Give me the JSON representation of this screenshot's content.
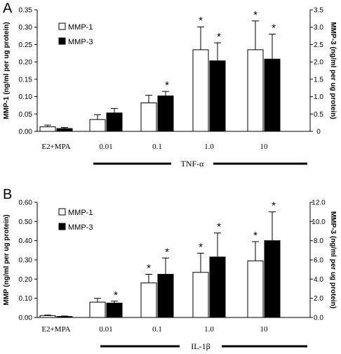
{
  "chart_data": [
    {
      "type": "bar",
      "panel_label": "A",
      "categories": [
        "E2+MPA",
        "0.01",
        "0.1",
        "1.0",
        "10"
      ],
      "treatment_label": "TNF-α",
      "treatment_group": [
        "0.01",
        "0.1",
        "1.0",
        "10"
      ],
      "ylabel_left": "MMP-1 (ng/ml per ug protein)",
      "ylabel_right": "MMP-3 (ng/ml per ug protein)",
      "ylim_left": [
        0,
        0.35
      ],
      "ylim_right": [
        0,
        3.5
      ],
      "yticks_left": [
        "0.00",
        "0.05",
        "0.10",
        "0.15",
        "0.20",
        "0.25",
        "0.30",
        "0.35"
      ],
      "yticks_right": [
        "0",
        "0.5",
        "1.0",
        "1.5",
        "2.0",
        "2.5",
        "3.0",
        "3.5"
      ],
      "legend": [
        "MMP-1",
        "MMP-3"
      ],
      "legend_position": "top-left",
      "series": [
        {
          "name": "MMP-1",
          "axis": "left",
          "color": "#ffffff",
          "values": [
            0.013,
            0.034,
            0.082,
            0.235,
            0.235
          ],
          "errors": [
            0.005,
            0.014,
            0.022,
            0.066,
            0.083
          ],
          "significant": [
            false,
            false,
            false,
            true,
            true
          ]
        },
        {
          "name": "MMP-3",
          "axis": "right",
          "color": "#000000",
          "values": [
            0.08,
            0.53,
            1.02,
            2.03,
            2.08
          ],
          "errors": [
            0.03,
            0.13,
            0.13,
            0.52,
            0.72
          ],
          "significant": [
            false,
            false,
            true,
            true,
            true
          ]
        }
      ],
      "asterisk": "*"
    },
    {
      "type": "bar",
      "panel_label": "B",
      "categories": [
        "E2+MPA",
        "0.01",
        "0.1",
        "1.0",
        "10"
      ],
      "treatment_label": "IL-1β",
      "treatment_group": [
        "0.01",
        "0.1",
        "1.0",
        "10"
      ],
      "ylabel_left": "MMP (ng/ml per ug protein)",
      "ylabel_right": "MMP-3 (ng/ml per ug protein)",
      "ylim_left": [
        0,
        0.6
      ],
      "ylim_right": [
        0,
        12.0
      ],
      "yticks_left": [
        "0.00",
        "0.10",
        "0.20",
        "0.30",
        "0.40",
        "0.50",
        "0.60"
      ],
      "yticks_right": [
        "0.0",
        "2.0",
        "4.0",
        "6.0",
        "8.0",
        "10.0",
        "12.0"
      ],
      "legend": [
        "MMP-1",
        "MMP-3"
      ],
      "legend_position": "top-left",
      "series": [
        {
          "name": "MMP-1",
          "axis": "left",
          "color": "#ffffff",
          "values": [
            0.01,
            0.08,
            0.18,
            0.235,
            0.295
          ],
          "errors": [
            0.003,
            0.02,
            0.045,
            0.1,
            0.1
          ],
          "significant": [
            false,
            false,
            true,
            true,
            true
          ]
        },
        {
          "name": "MMP-3",
          "axis": "right",
          "color": "#000000",
          "values": [
            0.1,
            1.5,
            4.5,
            6.3,
            8.0
          ],
          "errors": [
            0.05,
            0.2,
            1.7,
            2.5,
            3.0
          ],
          "significant": [
            false,
            true,
            true,
            true,
            true
          ]
        }
      ],
      "asterisk": "*"
    }
  ]
}
